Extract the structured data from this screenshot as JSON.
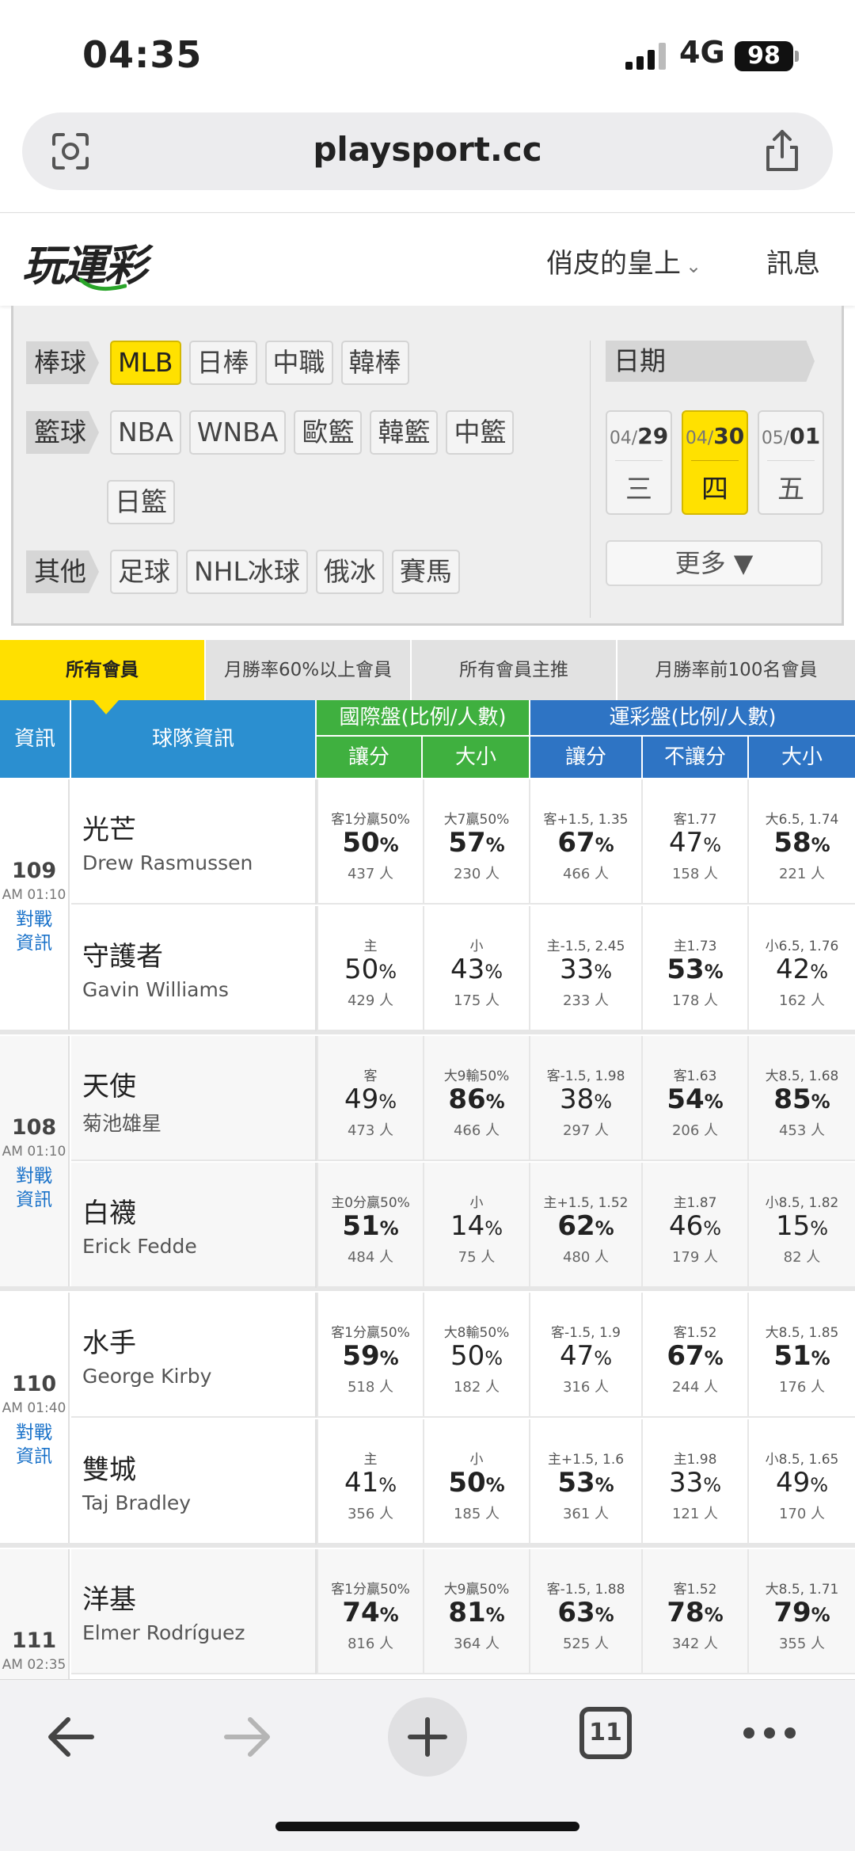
{
  "status_bar": {
    "time": "04:35",
    "network": "4G",
    "battery": "98"
  },
  "browser": {
    "url": "playsport.cc"
  },
  "site_header": {
    "logo": "玩運彩",
    "user_name": "俏皮的皇上",
    "messages": "訊息"
  },
  "filters": {
    "baseball": {
      "label": "棒球",
      "items": [
        "MLB",
        "日棒",
        "中職",
        "韓棒"
      ],
      "active": "MLB"
    },
    "basketball": {
      "label": "籃球",
      "items": [
        "NBA",
        "WNBA",
        "歐籃",
        "韓籃",
        "中籃"
      ],
      "items2": [
        "日籃"
      ]
    },
    "other": {
      "label": "其他",
      "items": [
        "足球",
        "NHL冰球",
        "俄冰",
        "賽馬"
      ]
    },
    "date": {
      "label": "日期",
      "days": [
        {
          "md_prefix": "04/",
          "md_day": "29",
          "weekday": "三",
          "active": false
        },
        {
          "md_prefix": "04/",
          "md_day": "30",
          "weekday": "四",
          "active": true
        },
        {
          "md_prefix": "05/",
          "md_day": "01",
          "weekday": "五",
          "active": false
        }
      ],
      "more": "更多 ▼"
    }
  },
  "member_tabs": [
    "所有會員",
    "月勝率60%以上會員",
    "所有會員主推",
    "月勝率前100名會員"
  ],
  "table_header": {
    "info": "資訊",
    "team": "球隊資訊",
    "intl": "國際盤(比例/人數)",
    "sport": "運彩盤(比例/人數)",
    "sub": [
      "讓分",
      "大小",
      "讓分",
      "不讓分",
      "大小"
    ]
  },
  "games": [
    {
      "num": "109",
      "time": "AM 01:10",
      "vs": "對戰資訊",
      "rows": [
        {
          "team_cn": "光芒",
          "team_en": "Drew Rasmussen",
          "cells": [
            {
              "top": "客1分贏50%",
              "pct": "50",
              "cnt": "437 人",
              "bold": true
            },
            {
              "top": "大7贏50%",
              "pct": "57",
              "cnt": "230 人",
              "bold": true
            },
            {
              "top": "客+1.5, 1.35",
              "pct": "67",
              "cnt": "466 人",
              "bold": true
            },
            {
              "top": "客1.77",
              "pct": "47",
              "cnt": "158 人",
              "bold": false
            },
            {
              "top": "大6.5, 1.74",
              "pct": "58",
              "cnt": "221 人",
              "bold": true
            }
          ]
        },
        {
          "team_cn": "守護者",
          "team_en": "Gavin Williams",
          "cells": [
            {
              "top": "主",
              "pct": "50",
              "cnt": "429 人",
              "bold": false
            },
            {
              "top": "小",
              "pct": "43",
              "cnt": "175 人",
              "bold": false
            },
            {
              "top": "主-1.5, 2.45",
              "pct": "33",
              "cnt": "233 人",
              "bold": false
            },
            {
              "top": "主1.73",
              "pct": "53",
              "cnt": "178 人",
              "bold": true
            },
            {
              "top": "小6.5, 1.76",
              "pct": "42",
              "cnt": "162 人",
              "bold": false
            }
          ]
        }
      ]
    },
    {
      "num": "108",
      "time": "AM 01:10",
      "vs": "對戰資訊",
      "rows": [
        {
          "team_cn": "天使",
          "team_en": "菊池雄星",
          "cells": [
            {
              "top": "客",
              "pct": "49",
              "cnt": "473 人",
              "bold": false
            },
            {
              "top": "大9輸50%",
              "pct": "86",
              "cnt": "466 人",
              "bold": true
            },
            {
              "top": "客-1.5, 1.98",
              "pct": "38",
              "cnt": "297 人",
              "bold": false
            },
            {
              "top": "客1.63",
              "pct": "54",
              "cnt": "206 人",
              "bold": true
            },
            {
              "top": "大8.5, 1.68",
              "pct": "85",
              "cnt": "453 人",
              "bold": true
            }
          ]
        },
        {
          "team_cn": "白襪",
          "team_en": "Erick Fedde",
          "cells": [
            {
              "top": "主0分贏50%",
              "pct": "51",
              "cnt": "484 人",
              "bold": true
            },
            {
              "top": "小",
              "pct": "14",
              "cnt": "75 人",
              "bold": false
            },
            {
              "top": "主+1.5, 1.52",
              "pct": "62",
              "cnt": "480 人",
              "bold": true
            },
            {
              "top": "主1.87",
              "pct": "46",
              "cnt": "179 人",
              "bold": false
            },
            {
              "top": "小8.5, 1.82",
              "pct": "15",
              "cnt": "82 人",
              "bold": false
            }
          ]
        }
      ]
    },
    {
      "num": "110",
      "time": "AM 01:40",
      "vs": "對戰資訊",
      "rows": [
        {
          "team_cn": "水手",
          "team_en": "George Kirby",
          "cells": [
            {
              "top": "客1分贏50%",
              "pct": "59",
              "cnt": "518 人",
              "bold": true
            },
            {
              "top": "大8輸50%",
              "pct": "50",
              "cnt": "182 人",
              "bold": false
            },
            {
              "top": "客-1.5, 1.9",
              "pct": "47",
              "cnt": "316 人",
              "bold": false
            },
            {
              "top": "客1.52",
              "pct": "67",
              "cnt": "244 人",
              "bold": true
            },
            {
              "top": "大8.5, 1.85",
              "pct": "51",
              "cnt": "176 人",
              "bold": true
            }
          ]
        },
        {
          "team_cn": "雙城",
          "team_en": "Taj Bradley",
          "cells": [
            {
              "top": "主",
              "pct": "41",
              "cnt": "356 人",
              "bold": false
            },
            {
              "top": "小",
              "pct": "50",
              "cnt": "185 人",
              "bold": true
            },
            {
              "top": "主+1.5, 1.6",
              "pct": "53",
              "cnt": "361 人",
              "bold": true
            },
            {
              "top": "主1.98",
              "pct": "33",
              "cnt": "121 人",
              "bold": false
            },
            {
              "top": "小8.5, 1.65",
              "pct": "49",
              "cnt": "170 人",
              "bold": false
            }
          ]
        }
      ]
    },
    {
      "num": "111",
      "time": "AM 02:35",
      "vs": "",
      "rows": [
        {
          "team_cn": "洋基",
          "team_en": "Elmer Rodríguez",
          "cells": [
            {
              "top": "客1分贏50%",
              "pct": "74",
              "cnt": "816 人",
              "bold": true
            },
            {
              "top": "大9贏50%",
              "pct": "81",
              "cnt": "364 人",
              "bold": true
            },
            {
              "top": "客-1.5, 1.88",
              "pct": "63",
              "cnt": "525 人",
              "bold": true
            },
            {
              "top": "客1.52",
              "pct": "78",
              "cnt": "342 人",
              "bold": true
            },
            {
              "top": "大8.5, 1.71",
              "pct": "79",
              "cnt": "355 人",
              "bold": true
            }
          ]
        }
      ]
    }
  ],
  "bottom_bar": {
    "tab_count": "11"
  },
  "colors": {
    "accent_yellow": "#ffe100",
    "header_blue": "#2b8fd0",
    "header_green": "#3fb03f",
    "link_blue": "#1a72c9"
  }
}
